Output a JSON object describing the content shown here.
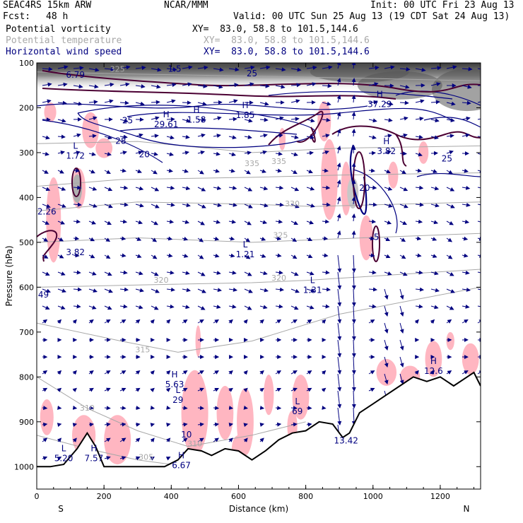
{
  "header": {
    "model": "SEAC4RS 15km ARW",
    "center": "NCAR/MMM",
    "init": "Init: 00 UTC Fri 23 Aug 13",
    "fcst_label": "Fcst:",
    "fcst_value": "48 h",
    "valid": "Valid: 00 UTC Sun 25 Aug 13 (19 CDT Sat 24 Aug 13)"
  },
  "fields": [
    {
      "name": "Potential vorticity",
      "xy": "XY=  83.0, 58.8 to 101.5,144.6",
      "color": "#000000"
    },
    {
      "name": "Potential temperature",
      "xy": "XY=  83.0, 58.8 to 101.5,144.6",
      "color": "#a8a8a8"
    },
    {
      "name": "Horizontal wind speed",
      "xy": "XY=  83.0, 58.8 to 101.5,144.6",
      "color": "#000080"
    }
  ],
  "colors": {
    "pv_shading": "#ffb6c1",
    "terrain": "#000000",
    "theta": "#a8a8a8",
    "wind": "#000080",
    "pv_contour": "#4b0033"
  },
  "chart_data": {
    "type": "cross-section",
    "title": "",
    "xlabel": "Distance (km)",
    "ylabel": "Pressure (hPa)",
    "xlim": [
      0,
      1320
    ],
    "ylim": [
      1050,
      100
    ],
    "x_ticks": [
      0,
      200,
      400,
      600,
      800,
      1000,
      1200
    ],
    "y_ticks": [
      100,
      200,
      300,
      400,
      500,
      600,
      700,
      800,
      900,
      1000
    ],
    "endpoint_labels": {
      "left": "S",
      "right": "N"
    },
    "theta_contours": [
      {
        "label": "335",
        "x": 640,
        "p": 330
      },
      {
        "label": "335",
        "x": 720,
        "p": 325
      },
      {
        "label": "330",
        "x": 760,
        "p": 420
      },
      {
        "label": "325",
        "x": 725,
        "p": 490
      },
      {
        "label": "320",
        "x": 370,
        "p": 590
      },
      {
        "label": "320",
        "x": 720,
        "p": 585
      },
      {
        "label": "315",
        "x": 315,
        "p": 745
      },
      {
        "label": "310",
        "x": 150,
        "p": 875
      },
      {
        "label": "310",
        "x": 470,
        "p": 955
      },
      {
        "label": "305",
        "x": 325,
        "p": 985
      },
      {
        "label": "325",
        "x": 240,
        "p": 120
      }
    ],
    "wind_contours": [
      {
        "label": "1.5",
        "x": 410,
        "p": 120
      },
      {
        "label": "25",
        "x": 640,
        "p": 130
      },
      {
        "label": "25",
        "x": 270,
        "p": 235
      },
      {
        "label": "28",
        "x": 250,
        "p": 280
      },
      {
        "label": "20",
        "x": 320,
        "p": 310
      },
      {
        "label": "25",
        "x": 1220,
        "p": 320
      },
      {
        "label": "20",
        "x": 975,
        "p": 385
      },
      {
        "label": "5",
        "x": 1010,
        "p": 495
      },
      {
        "label": "10",
        "x": 445,
        "p": 935
      }
    ],
    "extrema": [
      {
        "type": "",
        "value": "6.79",
        "x": 115,
        "p": 130
      },
      {
        "type": "H",
        "value": "29.61",
        "x": 385,
        "p": 240
      },
      {
        "type": "H",
        "value": "1.58",
        "x": 475,
        "p": 230
      },
      {
        "type": "H",
        "value": "1.85",
        "x": 620,
        "p": 220
      },
      {
        "type": "H",
        "value": "37.29",
        "x": 1020,
        "p": 195
      },
      {
        "type": "L",
        "value": "1.72",
        "x": 115,
        "p": 310
      },
      {
        "type": "H",
        "value": "3.82",
        "x": 1040,
        "p": 300
      },
      {
        "type": "",
        "value": "2.26",
        "x": 30,
        "p": 435
      },
      {
        "type": "",
        "value": "3.82",
        "x": 115,
        "p": 525
      },
      {
        "type": "L",
        "value": "1.21",
        "x": 620,
        "p": 530
      },
      {
        "type": "L",
        "value": "1.31",
        "x": 820,
        "p": 610
      },
      {
        "type": "",
        "value": "49",
        "x": 20,
        "p": 620
      },
      {
        "type": "H",
        "value": "5.63",
        "x": 410,
        "p": 820
      },
      {
        "type": "L",
        "value": "29",
        "x": 420,
        "p": 855
      },
      {
        "type": "L",
        "value": "69",
        "x": 775,
        "p": 880
      },
      {
        "type": "H",
        "value": "12.6",
        "x": 1180,
        "p": 790
      },
      {
        "type": "",
        "value": "13.42",
        "x": 920,
        "p": 945
      },
      {
        "type": "L",
        "value": "5.20",
        "x": 80,
        "p": 985
      },
      {
        "type": "H",
        "value": "7.57",
        "x": 170,
        "p": 985
      },
      {
        "type": "H",
        "value": "6.67",
        "x": 430,
        "p": 1000
      }
    ],
    "terrain_profile": {
      "x": [
        0,
        40,
        80,
        120,
        150,
        175,
        200,
        240,
        320,
        380,
        420,
        450,
        490,
        520,
        560,
        600,
        640,
        680,
        720,
        760,
        800,
        840,
        880,
        910,
        930,
        960,
        1000,
        1040,
        1080,
        1120,
        1160,
        1200,
        1240,
        1280,
        1300,
        1320
      ],
      "p": [
        1000,
        1000,
        995,
        960,
        925,
        955,
        1000,
        1000,
        1000,
        1000,
        985,
        960,
        965,
        975,
        960,
        965,
        985,
        965,
        940,
        925,
        920,
        900,
        905,
        935,
        925,
        880,
        860,
        840,
        820,
        800,
        810,
        800,
        820,
        800,
        790,
        820
      ]
    }
  }
}
